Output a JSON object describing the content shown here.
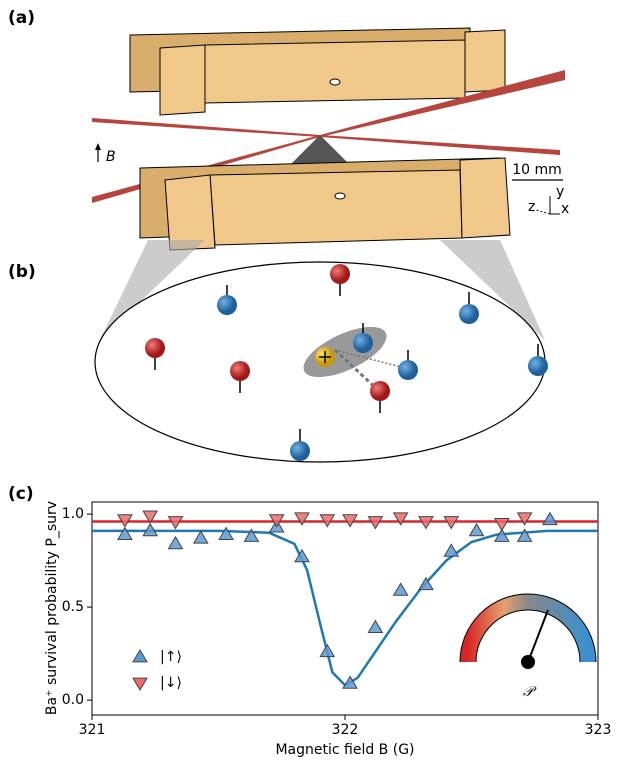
{
  "panels": {
    "a": {
      "label": "(a)",
      "field_label": "B",
      "scale_bar": "10 mm",
      "axes": [
        "z",
        "y",
        "x"
      ]
    },
    "b": {
      "label": "(b)"
    },
    "c": {
      "label": "(c)"
    }
  },
  "chart_data": {
    "type": "scatter",
    "xlabel": "Magnetic field B (G)",
    "ylabel": "Ba⁺ survival probability P_surv",
    "xlim": [
      321,
      323
    ],
    "xticks": [
      321,
      322,
      323
    ],
    "ylim": [
      -0.08,
      1.065
    ],
    "yticks": [
      {
        "value": 0,
        "label": "0.0"
      },
      {
        "value": 0.5,
        "label": "0.5"
      },
      {
        "value": 1,
        "label": "1.0"
      }
    ],
    "legend": "lower left",
    "inset_label": "𝒫",
    "series": [
      {
        "name": "|↑⟩",
        "color": "#5b9bd5",
        "marker": "triangle-up",
        "x": [
          321.13,
          321.23,
          321.33,
          321.43,
          321.53,
          321.63,
          321.73,
          321.83,
          321.93,
          322.02,
          322.12,
          322.22,
          322.32,
          322.42,
          322.52,
          322.62,
          322.71,
          322.81
        ],
        "values": [
          0.89,
          0.91,
          0.84,
          0.87,
          0.89,
          0.88,
          0.93,
          0.77,
          0.26,
          0.09,
          0.39,
          0.59,
          0.62,
          0.8,
          0.91,
          0.88,
          0.88,
          0.97
        ]
      },
      {
        "name": "|↓⟩",
        "color": "#ef6a6a",
        "marker": "triangle-down",
        "x": [
          321.13,
          321.23,
          321.33,
          321.73,
          321.83,
          321.93,
          322.02,
          322.12,
          322.22,
          322.32,
          322.42,
          322.62,
          322.71
        ],
        "values": [
          0.97,
          0.99,
          0.96,
          0.97,
          0.98,
          0.97,
          0.97,
          0.96,
          0.98,
          0.96,
          0.96,
          0.95,
          0.98
        ]
      }
    ],
    "fits": [
      {
        "color": "#1f77b4",
        "x": [
          321,
          321.5,
          321.7,
          321.8,
          321.85,
          321.9,
          321.95,
          322,
          322.05,
          322.1,
          322.2,
          322.3,
          322.4,
          322.5,
          322.6,
          322.8,
          323
        ],
        "values": [
          0.91,
          0.91,
          0.9,
          0.84,
          0.7,
          0.42,
          0.15,
          0.08,
          0.12,
          0.22,
          0.42,
          0.6,
          0.75,
          0.85,
          0.89,
          0.91,
          0.91
        ]
      },
      {
        "color": "#d62728",
        "x": [
          321,
          323
        ],
        "values": [
          0.96,
          0.96
        ]
      }
    ]
  }
}
